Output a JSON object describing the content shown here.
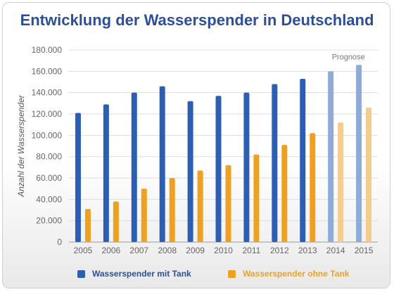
{
  "chart_data": {
    "type": "bar",
    "title": "Entwicklung der Wasserspender in Deutschland",
    "ylabel": "Anzahl der Wasserspender",
    "xlabel": "",
    "ylim": [
      0,
      180000
    ],
    "yticks": [
      "0",
      "20.000",
      "40.000",
      "60.000",
      "80.000",
      "100.000",
      "120.000",
      "140.000",
      "160.000",
      "180.000"
    ],
    "categories": [
      "2005",
      "2006",
      "2007",
      "2008",
      "2009",
      "2010",
      "2011",
      "2012",
      "2013",
      "2014",
      "2015"
    ],
    "series": [
      {
        "name": "Wasserspender mit Tank",
        "color": "#2c5fb4",
        "forecast_color": "#8fabd7",
        "values": [
          121000,
          129000,
          140000,
          146000,
          132000,
          137000,
          140000,
          148000,
          153000,
          160000,
          166000
        ]
      },
      {
        "name": "Wasserspender ohne Tank",
        "color": "#f0a020",
        "forecast_color": "#f5cc8a",
        "values": [
          31000,
          38000,
          50000,
          60000,
          67000,
          72000,
          82000,
          91000,
          102000,
          112000,
          126000
        ]
      }
    ],
    "forecast_from": "2014",
    "annotation": "Prognose",
    "grid": true,
    "legend_position": "bottom"
  }
}
